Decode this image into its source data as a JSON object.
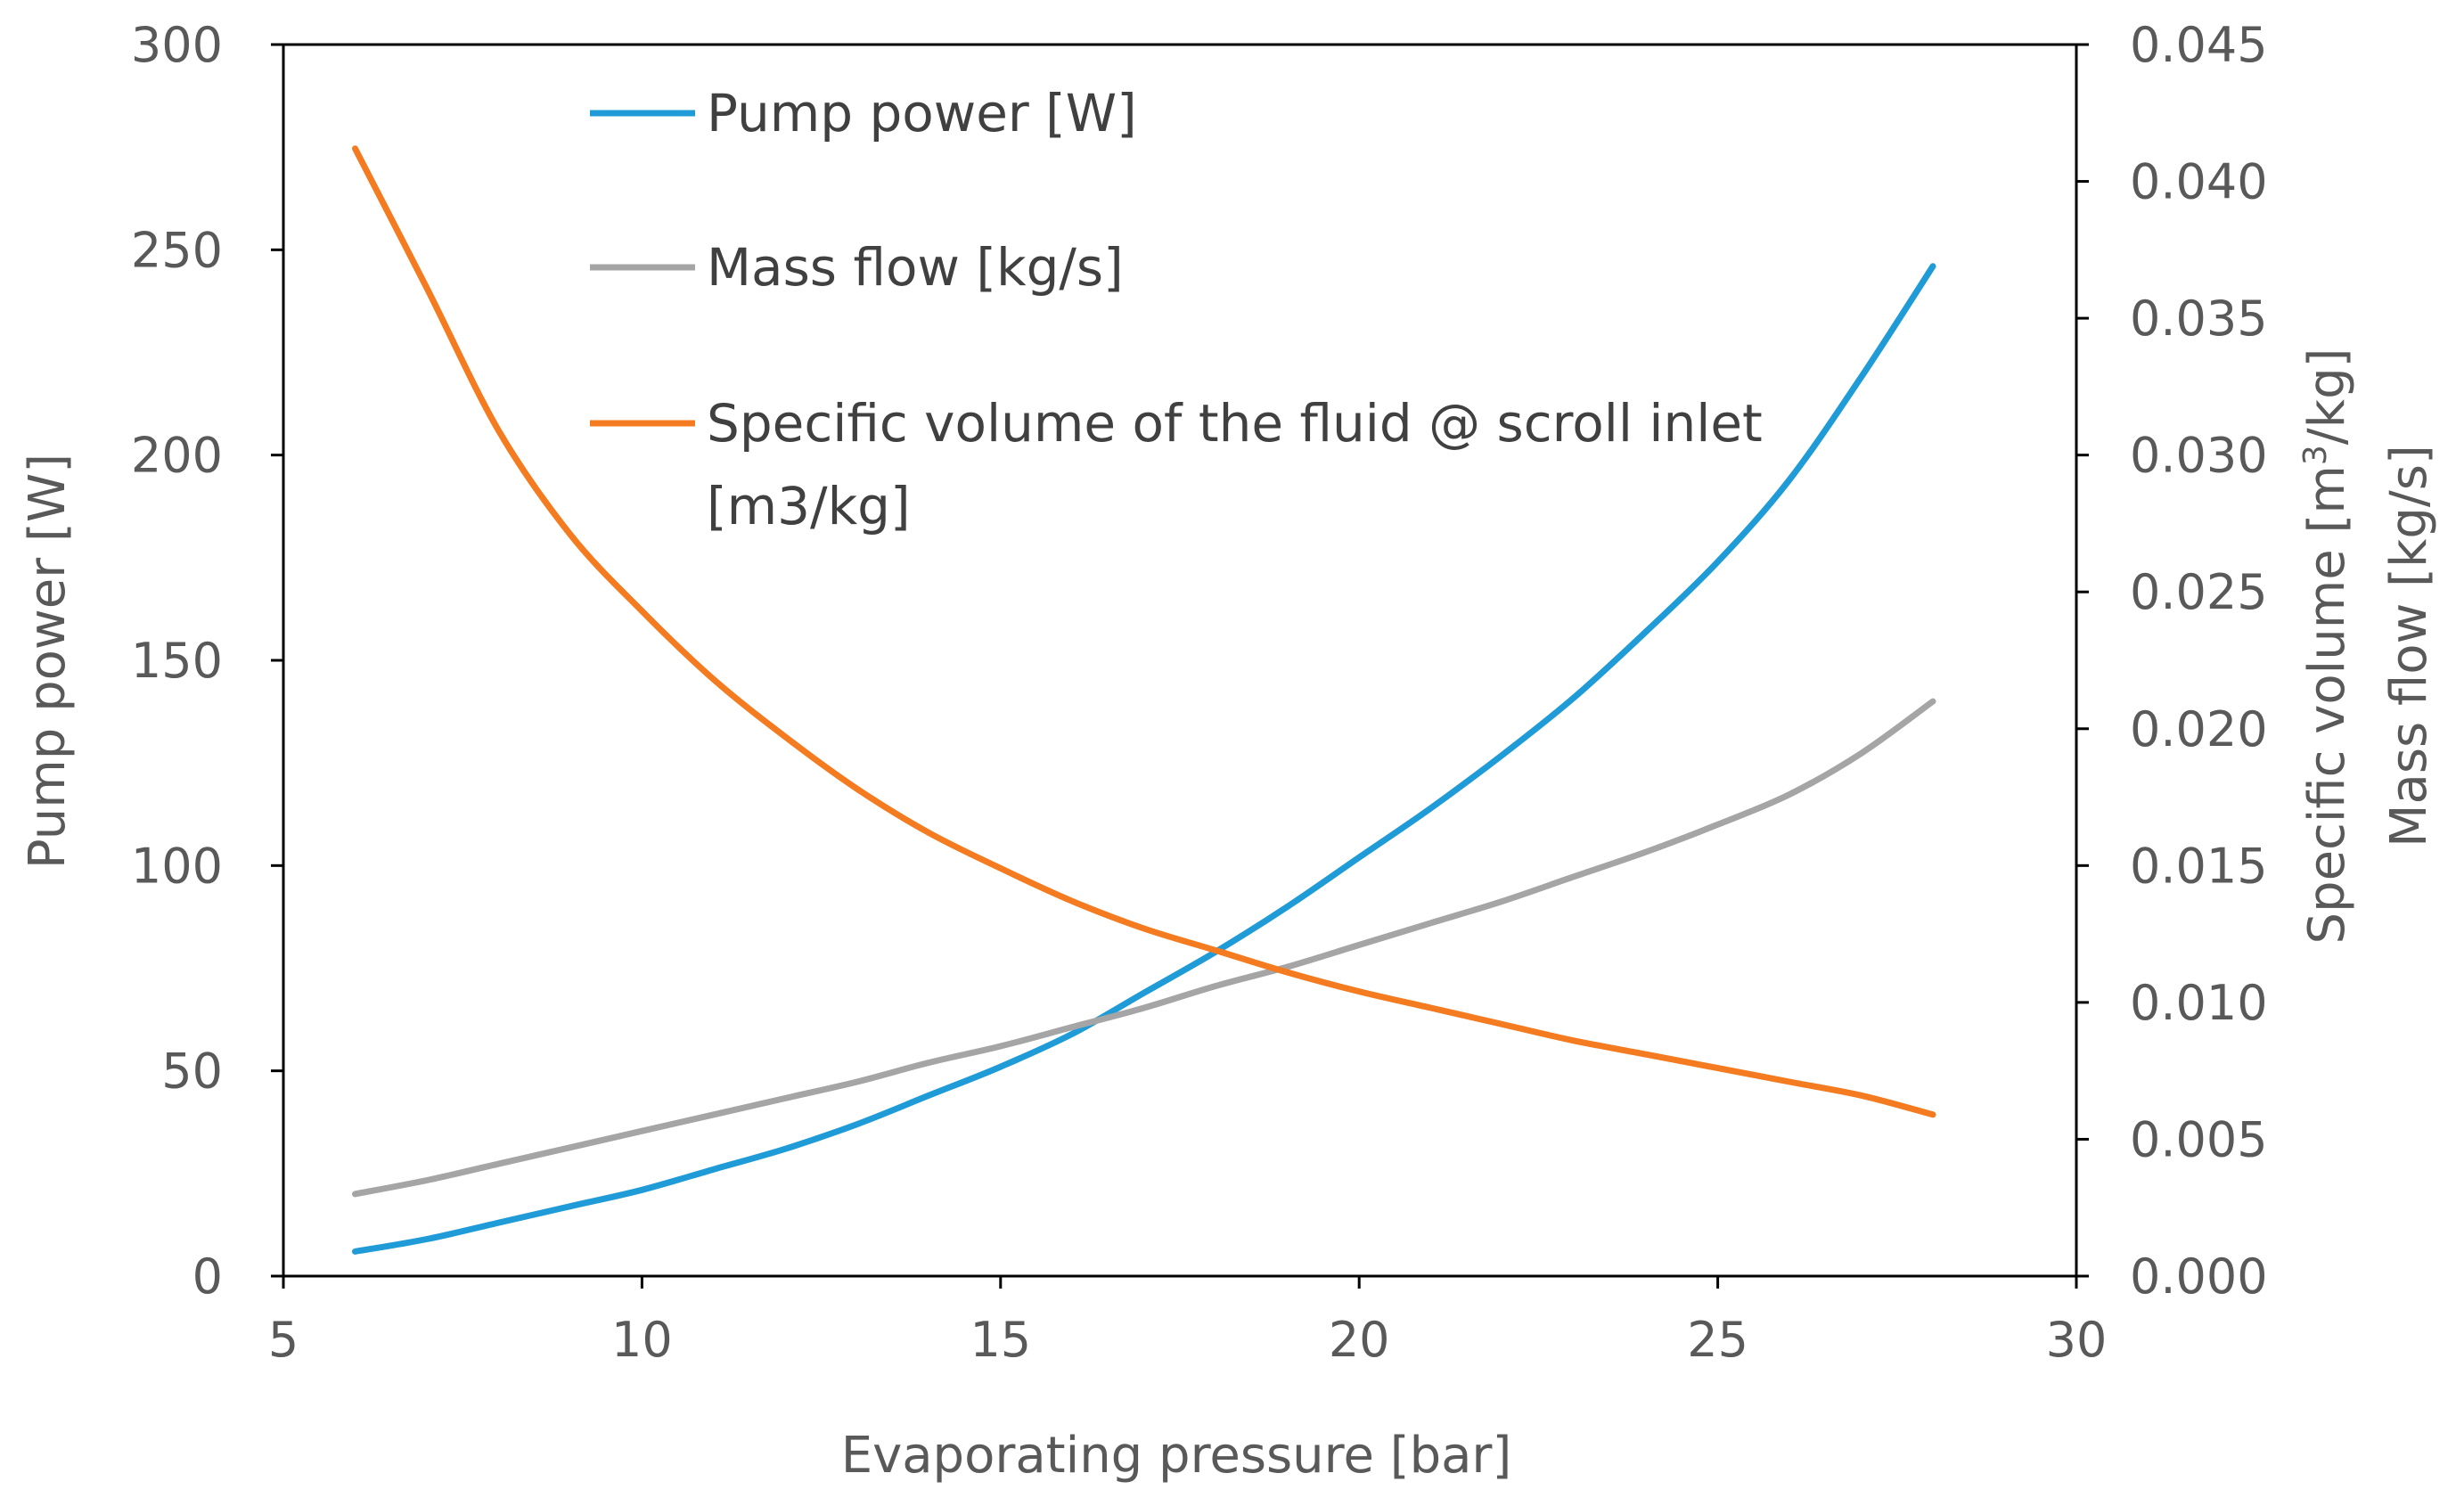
{
  "chart_data": {
    "type": "line",
    "xlabel": "Evaporating pressure [bar]",
    "ylabel_left": "Pump power [W]",
    "ylabel_right_1_base": "Specific volume [m",
    "ylabel_right_1_sup": "3",
    "ylabel_right_1_tail": "/kg]",
    "ylabel_right_2": "Mass flow [kg/s]",
    "xlim": [
      5,
      30
    ],
    "ylim_left": [
      0,
      300
    ],
    "ylim_right": [
      0,
      0.045
    ],
    "x_ticks": [
      "5",
      "10",
      "15",
      "20",
      "25",
      "30"
    ],
    "y_left_ticks": [
      "0",
      "50",
      "100",
      "150",
      "200",
      "250",
      "300"
    ],
    "y_right_ticks": [
      "0.000",
      "0.005",
      "0.010",
      "0.015",
      "0.020",
      "0.025",
      "0.030",
      "0.035",
      "0.040",
      "0.045"
    ],
    "grid": false,
    "legend_position": "top-left",
    "series": [
      {
        "name": "Pump power [W]",
        "axis": "left",
        "color": "#1f9bd7",
        "x": [
          6,
          7,
          8,
          9,
          10,
          11,
          12,
          13,
          14,
          15,
          16,
          17,
          18,
          19,
          20,
          21,
          22,
          23,
          24,
          25,
          26,
          27,
          28
        ],
        "y": [
          6,
          9,
          13,
          17,
          21,
          26,
          31,
          37,
          44,
          51,
          59,
          69,
          79,
          90,
          102,
          114,
          127,
          141,
          157,
          174,
          194,
          219,
          246
        ]
      },
      {
        "name": "Mass flow [kg/s]",
        "axis": "right",
        "color": "#a5a5a5",
        "x": [
          6,
          7,
          8,
          9,
          10,
          11,
          12,
          13,
          14,
          15,
          16,
          17,
          18,
          19,
          20,
          21,
          22,
          23,
          24,
          25,
          26,
          27,
          28
        ],
        "y": [
          0.003,
          0.0035,
          0.0041,
          0.0047,
          0.0053,
          0.0059,
          0.0065,
          0.0071,
          0.0078,
          0.0084,
          0.0091,
          0.0098,
          0.0106,
          0.0113,
          0.0121,
          0.0129,
          0.0137,
          0.0146,
          0.0155,
          0.0165,
          0.0176,
          0.0191,
          0.021
        ]
      },
      {
        "name": "Specific volume of the fluid @ scroll inlet [m3/kg]",
        "name_line1": "Specific volume of the fluid @ scroll inlet",
        "name_line2": "[m3/kg]",
        "axis": "right",
        "color": "#f47b20",
        "x": [
          6,
          7,
          8,
          9,
          10,
          11,
          12,
          13,
          14,
          15,
          16,
          17,
          18,
          19,
          20,
          21,
          22,
          23,
          24,
          25,
          26,
          27,
          28
        ],
        "y": [
          0.0412,
          0.0361,
          0.0309,
          0.0271,
          0.0243,
          0.0218,
          0.0197,
          0.0178,
          0.0162,
          0.0149,
          0.0137,
          0.0127,
          0.0119,
          0.0111,
          0.0104,
          0.0098,
          0.0092,
          0.0086,
          0.0081,
          0.0076,
          0.0071,
          0.0066,
          0.0059
        ]
      }
    ]
  }
}
